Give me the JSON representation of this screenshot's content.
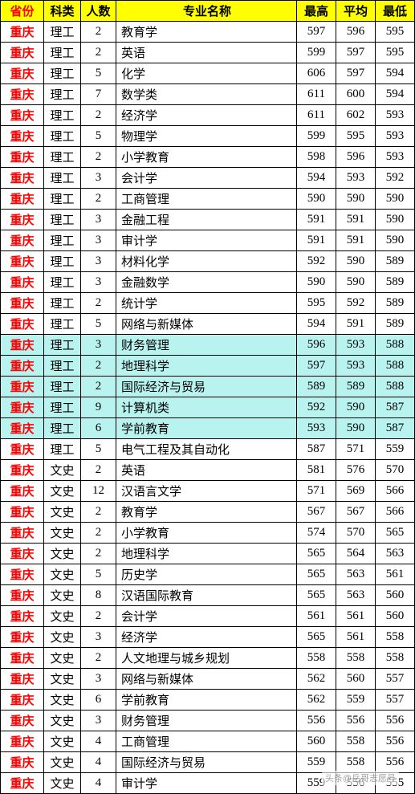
{
  "table": {
    "headers": {
      "province": "省份",
      "category": "科类",
      "count": "人数",
      "major": "专业名称",
      "high": "最高",
      "avg": "平均",
      "low": "最低"
    },
    "rows": [
      {
        "province": "重庆",
        "category": "理工",
        "count": 2,
        "major": "教育学",
        "high": 597,
        "avg": 596,
        "low": 595,
        "hl": false
      },
      {
        "province": "重庆",
        "category": "理工",
        "count": 2,
        "major": "英语",
        "high": 599,
        "avg": 597,
        "low": 595,
        "hl": false
      },
      {
        "province": "重庆",
        "category": "理工",
        "count": 5,
        "major": "化学",
        "high": 606,
        "avg": 597,
        "low": 594,
        "hl": false
      },
      {
        "province": "重庆",
        "category": "理工",
        "count": 7,
        "major": "数学类",
        "high": 611,
        "avg": 600,
        "low": 594,
        "hl": false
      },
      {
        "province": "重庆",
        "category": "理工",
        "count": 2,
        "major": "经济学",
        "high": 611,
        "avg": 602,
        "low": 593,
        "hl": false
      },
      {
        "province": "重庆",
        "category": "理工",
        "count": 5,
        "major": "物理学",
        "high": 599,
        "avg": 595,
        "low": 593,
        "hl": false
      },
      {
        "province": "重庆",
        "category": "理工",
        "count": 2,
        "major": "小学教育",
        "high": 598,
        "avg": 596,
        "low": 593,
        "hl": false
      },
      {
        "province": "重庆",
        "category": "理工",
        "count": 3,
        "major": "会计学",
        "high": 594,
        "avg": 593,
        "low": 592,
        "hl": false
      },
      {
        "province": "重庆",
        "category": "理工",
        "count": 2,
        "major": "工商管理",
        "high": 590,
        "avg": 590,
        "low": 590,
        "hl": false
      },
      {
        "province": "重庆",
        "category": "理工",
        "count": 3,
        "major": "金融工程",
        "high": 591,
        "avg": 591,
        "low": 590,
        "hl": false
      },
      {
        "province": "重庆",
        "category": "理工",
        "count": 3,
        "major": "审计学",
        "high": 591,
        "avg": 591,
        "low": 590,
        "hl": false
      },
      {
        "province": "重庆",
        "category": "理工",
        "count": 3,
        "major": "材料化学",
        "high": 592,
        "avg": 590,
        "low": 589,
        "hl": false
      },
      {
        "province": "重庆",
        "category": "理工",
        "count": 3,
        "major": "金融数学",
        "high": 590,
        "avg": 590,
        "low": 589,
        "hl": false
      },
      {
        "province": "重庆",
        "category": "理工",
        "count": 2,
        "major": "统计学",
        "high": 595,
        "avg": 592,
        "low": 589,
        "hl": false
      },
      {
        "province": "重庆",
        "category": "理工",
        "count": 5,
        "major": "网络与新媒体",
        "high": 594,
        "avg": 591,
        "low": 589,
        "hl": false
      },
      {
        "province": "重庆",
        "category": "理工",
        "count": 3,
        "major": "财务管理",
        "high": 596,
        "avg": 593,
        "low": 588,
        "hl": true
      },
      {
        "province": "重庆",
        "category": "理工",
        "count": 2,
        "major": "地理科学",
        "high": 597,
        "avg": 593,
        "low": 588,
        "hl": true
      },
      {
        "province": "重庆",
        "category": "理工",
        "count": 2,
        "major": "国际经济与贸易",
        "high": 589,
        "avg": 589,
        "low": 588,
        "hl": true
      },
      {
        "province": "重庆",
        "category": "理工",
        "count": 9,
        "major": "计算机类",
        "high": 592,
        "avg": 590,
        "low": 587,
        "hl": true
      },
      {
        "province": "重庆",
        "category": "理工",
        "count": 6,
        "major": "学前教育",
        "high": 593,
        "avg": 590,
        "low": 587,
        "hl": true
      },
      {
        "province": "重庆",
        "category": "理工",
        "count": 5,
        "major": "电气工程及其自动化",
        "high": 587,
        "avg": 571,
        "low": 559,
        "hl": false
      },
      {
        "province": "重庆",
        "category": "文史",
        "count": 2,
        "major": "英语",
        "high": 581,
        "avg": 576,
        "low": 570,
        "hl": false
      },
      {
        "province": "重庆",
        "category": "文史",
        "count": 12,
        "major": "汉语言文学",
        "high": 571,
        "avg": 569,
        "low": 566,
        "hl": false
      },
      {
        "province": "重庆",
        "category": "文史",
        "count": 2,
        "major": "教育学",
        "high": 567,
        "avg": 567,
        "low": 566,
        "hl": false
      },
      {
        "province": "重庆",
        "category": "文史",
        "count": 2,
        "major": "小学教育",
        "high": 574,
        "avg": 570,
        "low": 565,
        "hl": false
      },
      {
        "province": "重庆",
        "category": "文史",
        "count": 2,
        "major": "地理科学",
        "high": 565,
        "avg": 564,
        "low": 563,
        "hl": false
      },
      {
        "province": "重庆",
        "category": "文史",
        "count": 5,
        "major": "历史学",
        "high": 565,
        "avg": 563,
        "low": 561,
        "hl": false
      },
      {
        "province": "重庆",
        "category": "文史",
        "count": 8,
        "major": "汉语国际教育",
        "high": 565,
        "avg": 563,
        "low": 560,
        "hl": false
      },
      {
        "province": "重庆",
        "category": "文史",
        "count": 2,
        "major": "会计学",
        "high": 561,
        "avg": 561,
        "low": 560,
        "hl": false
      },
      {
        "province": "重庆",
        "category": "文史",
        "count": 3,
        "major": "经济学",
        "high": 565,
        "avg": 561,
        "low": 558,
        "hl": false
      },
      {
        "province": "重庆",
        "category": "文史",
        "count": 2,
        "major": "人文地理与城乡规划",
        "high": 558,
        "avg": 558,
        "low": 558,
        "hl": false
      },
      {
        "province": "重庆",
        "category": "文史",
        "count": 3,
        "major": "网络与新媒体",
        "high": 562,
        "avg": 560,
        "low": 557,
        "hl": false
      },
      {
        "province": "重庆",
        "category": "文史",
        "count": 6,
        "major": "学前教育",
        "high": 562,
        "avg": 559,
        "low": 557,
        "hl": false
      },
      {
        "province": "重庆",
        "category": "文史",
        "count": 3,
        "major": "财务管理",
        "high": 556,
        "avg": 556,
        "low": 556,
        "hl": false
      },
      {
        "province": "重庆",
        "category": "文史",
        "count": 4,
        "major": "工商管理",
        "high": 560,
        "avg": 558,
        "low": 556,
        "hl": false
      },
      {
        "province": "重庆",
        "category": "文史",
        "count": 4,
        "major": "国际经济与贸易",
        "high": 559,
        "avg": 558,
        "low": 556,
        "hl": false
      },
      {
        "province": "重庆",
        "category": "文史",
        "count": 4,
        "major": "审计学",
        "high": 559,
        "avg": 556,
        "low": 555,
        "hl": false
      }
    ]
  },
  "watermark": "头条@岳哥志愿号"
}
